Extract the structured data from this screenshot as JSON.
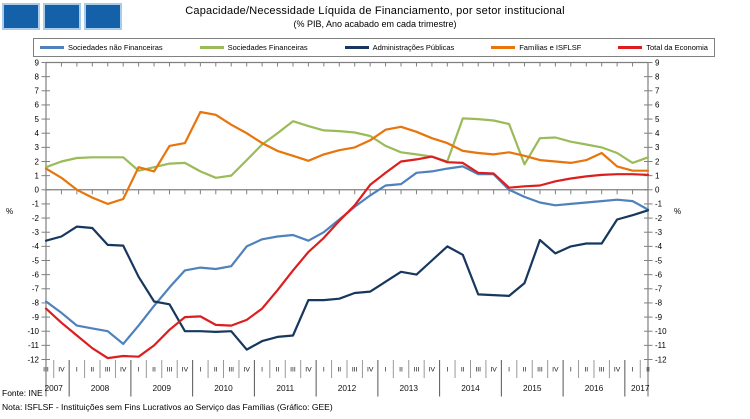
{
  "header": {
    "title": "Capacidade/Necessidade Líquida de Financiamento, por setor institucional",
    "subtitle": "(% PIB, Ano acabado em cada trimestre)"
  },
  "logo": {
    "square_color": "#1460A9",
    "square_count": 3
  },
  "footer": {
    "source": "Fonte: INE",
    "note": "Nota: ISFLSF - Instituições sem Fins Lucrativos ao Serviço das Famílias  (Gráfico: GEE)"
  },
  "chart_data": {
    "type": "line",
    "title": "Capacidade/Necessidade Líquida de Financiamento, por setor institucional",
    "subtitle": "(% PIB, Ano acabado em cada trimestre)",
    "ylabel_left": "%",
    "ylabel_right": "%",
    "ylim": [
      -12,
      9
    ],
    "ytick_step": 1,
    "grid": false,
    "legend_position": "top",
    "axis_color": "#808080",
    "x_axis": {
      "years": [
        {
          "label": "2007",
          "quarters": [
            "III",
            "IV"
          ]
        },
        {
          "label": "2008",
          "quarters": [
            "I",
            "II",
            "III",
            "IV"
          ]
        },
        {
          "label": "2009",
          "quarters": [
            "I",
            "II",
            "III",
            "IV"
          ]
        },
        {
          "label": "2010",
          "quarters": [
            "I",
            "II",
            "III",
            "IV"
          ]
        },
        {
          "label": "2011",
          "quarters": [
            "I",
            "II",
            "III",
            "IV"
          ]
        },
        {
          "label": "2012",
          "quarters": [
            "I",
            "II",
            "III",
            "IV"
          ]
        },
        {
          "label": "2013",
          "quarters": [
            "I",
            "II",
            "III",
            "IV"
          ]
        },
        {
          "label": "2014",
          "quarters": [
            "I",
            "II",
            "III",
            "IV"
          ]
        },
        {
          "label": "2015",
          "quarters": [
            "I",
            "II",
            "III",
            "IV"
          ]
        },
        {
          "label": "2016",
          "quarters": [
            "I",
            "II",
            "III",
            "IV"
          ]
        },
        {
          "label": "2017",
          "quarters": [
            "I",
            "II"
          ]
        }
      ]
    },
    "series": [
      {
        "name": "Sociedades não Financeiras",
        "color": "#4F81BD",
        "values": [
          -7.9,
          -8.7,
          -9.6,
          -9.8,
          -10.0,
          -10.9,
          -9.6,
          -8.2,
          -6.9,
          -5.7,
          -5.5,
          -5.6,
          -5.4,
          -4.0,
          -3.5,
          -3.3,
          -3.2,
          -3.6,
          -3.0,
          -2.1,
          -1.2,
          -0.4,
          0.3,
          0.4,
          1.2,
          1.3,
          1.5,
          1.65,
          1.1,
          1.1,
          0.0,
          -0.5,
          -0.9,
          -1.1,
          -1.0,
          -0.9,
          -0.8,
          -0.7,
          -0.8,
          -1.4
        ]
      },
      {
        "name": "Sociedades Financeiras",
        "color": "#9BBB59",
        "values": [
          1.6,
          2.0,
          2.25,
          2.3,
          2.3,
          2.3,
          1.35,
          1.6,
          1.85,
          1.9,
          1.3,
          0.85,
          1.0,
          2.1,
          3.2,
          4.0,
          4.85,
          4.5,
          4.2,
          4.15,
          4.05,
          3.8,
          3.1,
          2.65,
          2.5,
          2.35,
          2.0,
          5.05,
          5.0,
          4.9,
          4.65,
          1.8,
          3.65,
          3.7,
          3.4,
          3.2,
          3.0,
          2.6,
          1.9,
          2.3
        ]
      },
      {
        "name": "Administrações Públicas",
        "color": "#17375E",
        "values": [
          -3.6,
          -3.3,
          -2.6,
          -2.7,
          -3.9,
          -3.95,
          -6.15,
          -7.9,
          -8.1,
          -10.0,
          -10.0,
          -10.05,
          -10.0,
          -11.3,
          -10.7,
          -10.4,
          -10.3,
          -7.8,
          -7.8,
          -7.7,
          -7.3,
          -7.2,
          -6.5,
          -5.8,
          -6.0,
          -5.0,
          -4.0,
          -4.6,
          -7.4,
          -7.45,
          -7.5,
          -6.6,
          -3.55,
          -4.5,
          -4.0,
          -3.8,
          -3.8,
          -2.1,
          -1.8,
          -1.45
        ]
      },
      {
        "name": "Famílias e ISFLSF",
        "color": "#E8740C",
        "values": [
          1.5,
          0.85,
          0.0,
          -0.55,
          -1.0,
          -0.65,
          1.6,
          1.3,
          3.1,
          3.3,
          5.5,
          5.3,
          4.6,
          4.0,
          3.3,
          2.75,
          2.4,
          2.05,
          2.5,
          2.8,
          3.0,
          3.5,
          4.25,
          4.45,
          4.1,
          3.65,
          3.3,
          2.75,
          2.6,
          2.5,
          2.65,
          2.4,
          2.1,
          2.0,
          1.9,
          2.1,
          2.6,
          1.65,
          1.35,
          1.35
        ]
      },
      {
        "name": "Total da Economia",
        "color": "#DC1E1E",
        "values": [
          -8.4,
          -9.4,
          -10.3,
          -11.2,
          -11.9,
          -11.75,
          -11.8,
          -11.0,
          -9.9,
          -9.0,
          -8.95,
          -9.55,
          -9.6,
          -9.2,
          -8.4,
          -7.1,
          -5.7,
          -4.4,
          -3.4,
          -2.2,
          -1.1,
          0.35,
          1.2,
          2.0,
          2.15,
          2.35,
          1.95,
          1.9,
          1.2,
          1.15,
          0.15,
          0.25,
          0.3,
          0.6,
          0.8,
          0.95,
          1.05,
          1.1,
          1.1,
          1.05
        ]
      }
    ]
  }
}
